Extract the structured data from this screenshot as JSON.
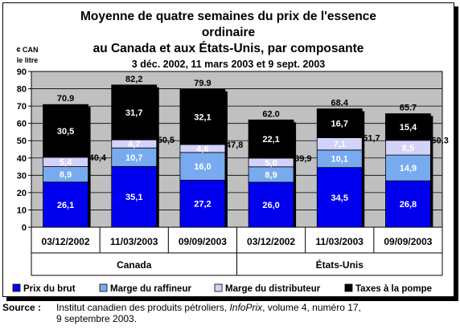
{
  "chart_data": {
    "type": "bar",
    "stacked": true,
    "title_lines": [
      "Moyenne de quatre semaines du prix de l'essence",
      "ordinaire",
      "au Canada et aux États-Unis, par composante",
      "3 déc. 2002, 11 mars 2003 et 9 sept. 2003"
    ],
    "ylabel_lines": [
      "¢ CAN",
      "le litre"
    ],
    "ylim": [
      0,
      90
    ],
    "yticks": [
      "0",
      "10",
      "20",
      "30",
      "40",
      "50",
      "60",
      "70",
      "80",
      "90"
    ],
    "grid": true,
    "legend_position": "bottom",
    "groups": [
      {
        "label": "Canada",
        "categories": [
          "03/12/2002",
          "11/03/2003",
          "09/09/2003"
        ]
      },
      {
        "label": "États-Unis",
        "categories": [
          "03/12/2002",
          "11/03/2003",
          "09/09/2003"
        ]
      }
    ],
    "categories": [
      "03/12/2002",
      "11/03/2003",
      "09/09/2003",
      "03/12/2002",
      "11/03/2003",
      "09/09/2003"
    ],
    "series": [
      {
        "name": "Prix du brut",
        "color": "#0000ee",
        "label_color": "#ffffff",
        "values": [
          26.1,
          35.1,
          27.2,
          26.0,
          34.5,
          26.8
        ],
        "labels": [
          "26,1",
          "35,1",
          "27,2",
          "26,0",
          "34,5",
          "26,8"
        ]
      },
      {
        "name": "Marge du raffineur",
        "color": "#78aaf0",
        "label_color": "#ffffff",
        "values": [
          8.9,
          10.7,
          16.0,
          8.9,
          10.1,
          14.9
        ],
        "labels": [
          "8,9",
          "10,7",
          "16,0",
          "8,9",
          "10,1",
          "14,9"
        ]
      },
      {
        "name": "Marge du distributeur",
        "color": "#d2d2fa",
        "label_color": "#ffffff",
        "values": [
          5.4,
          4.7,
          4.6,
          5.0,
          7.1,
          8.5
        ],
        "labels": [
          "5,4",
          "4,7",
          "4,6",
          "5,0",
          "7,1",
          "8,5"
        ]
      },
      {
        "name": "Taxes à la  pompe",
        "color": "#000000",
        "label_color": "#ffffff",
        "values": [
          30.5,
          31.7,
          32.1,
          22.1,
          16.7,
          15.4
        ],
        "labels": [
          "30,5",
          "31,7",
          "32,1",
          "22,1",
          "16,7",
          "15,4"
        ]
      }
    ],
    "totals": [
      70.9,
      82.2,
      79.9,
      62.0,
      68.4,
      65.7
    ],
    "total_labels": [
      "70.9",
      "82,2",
      "79.9",
      "62.0",
      "68.4",
      "65.7"
    ],
    "pretax_totals": [
      40.4,
      50.5,
      47.8,
      39.9,
      51.7,
      50.3
    ],
    "pretax_labels": [
      "40,4",
      "50,5",
      "47,8",
      "39,9",
      "51,7",
      "50,3"
    ]
  },
  "source": {
    "label": "Source :",
    "line1_prefix": "Institut canadien des produits pétroliers, ",
    "line1_italic": "InfoPrix",
    "line1_suffix": ", volume 4, numéro 17,",
    "line2": "9 septembre 2003."
  }
}
